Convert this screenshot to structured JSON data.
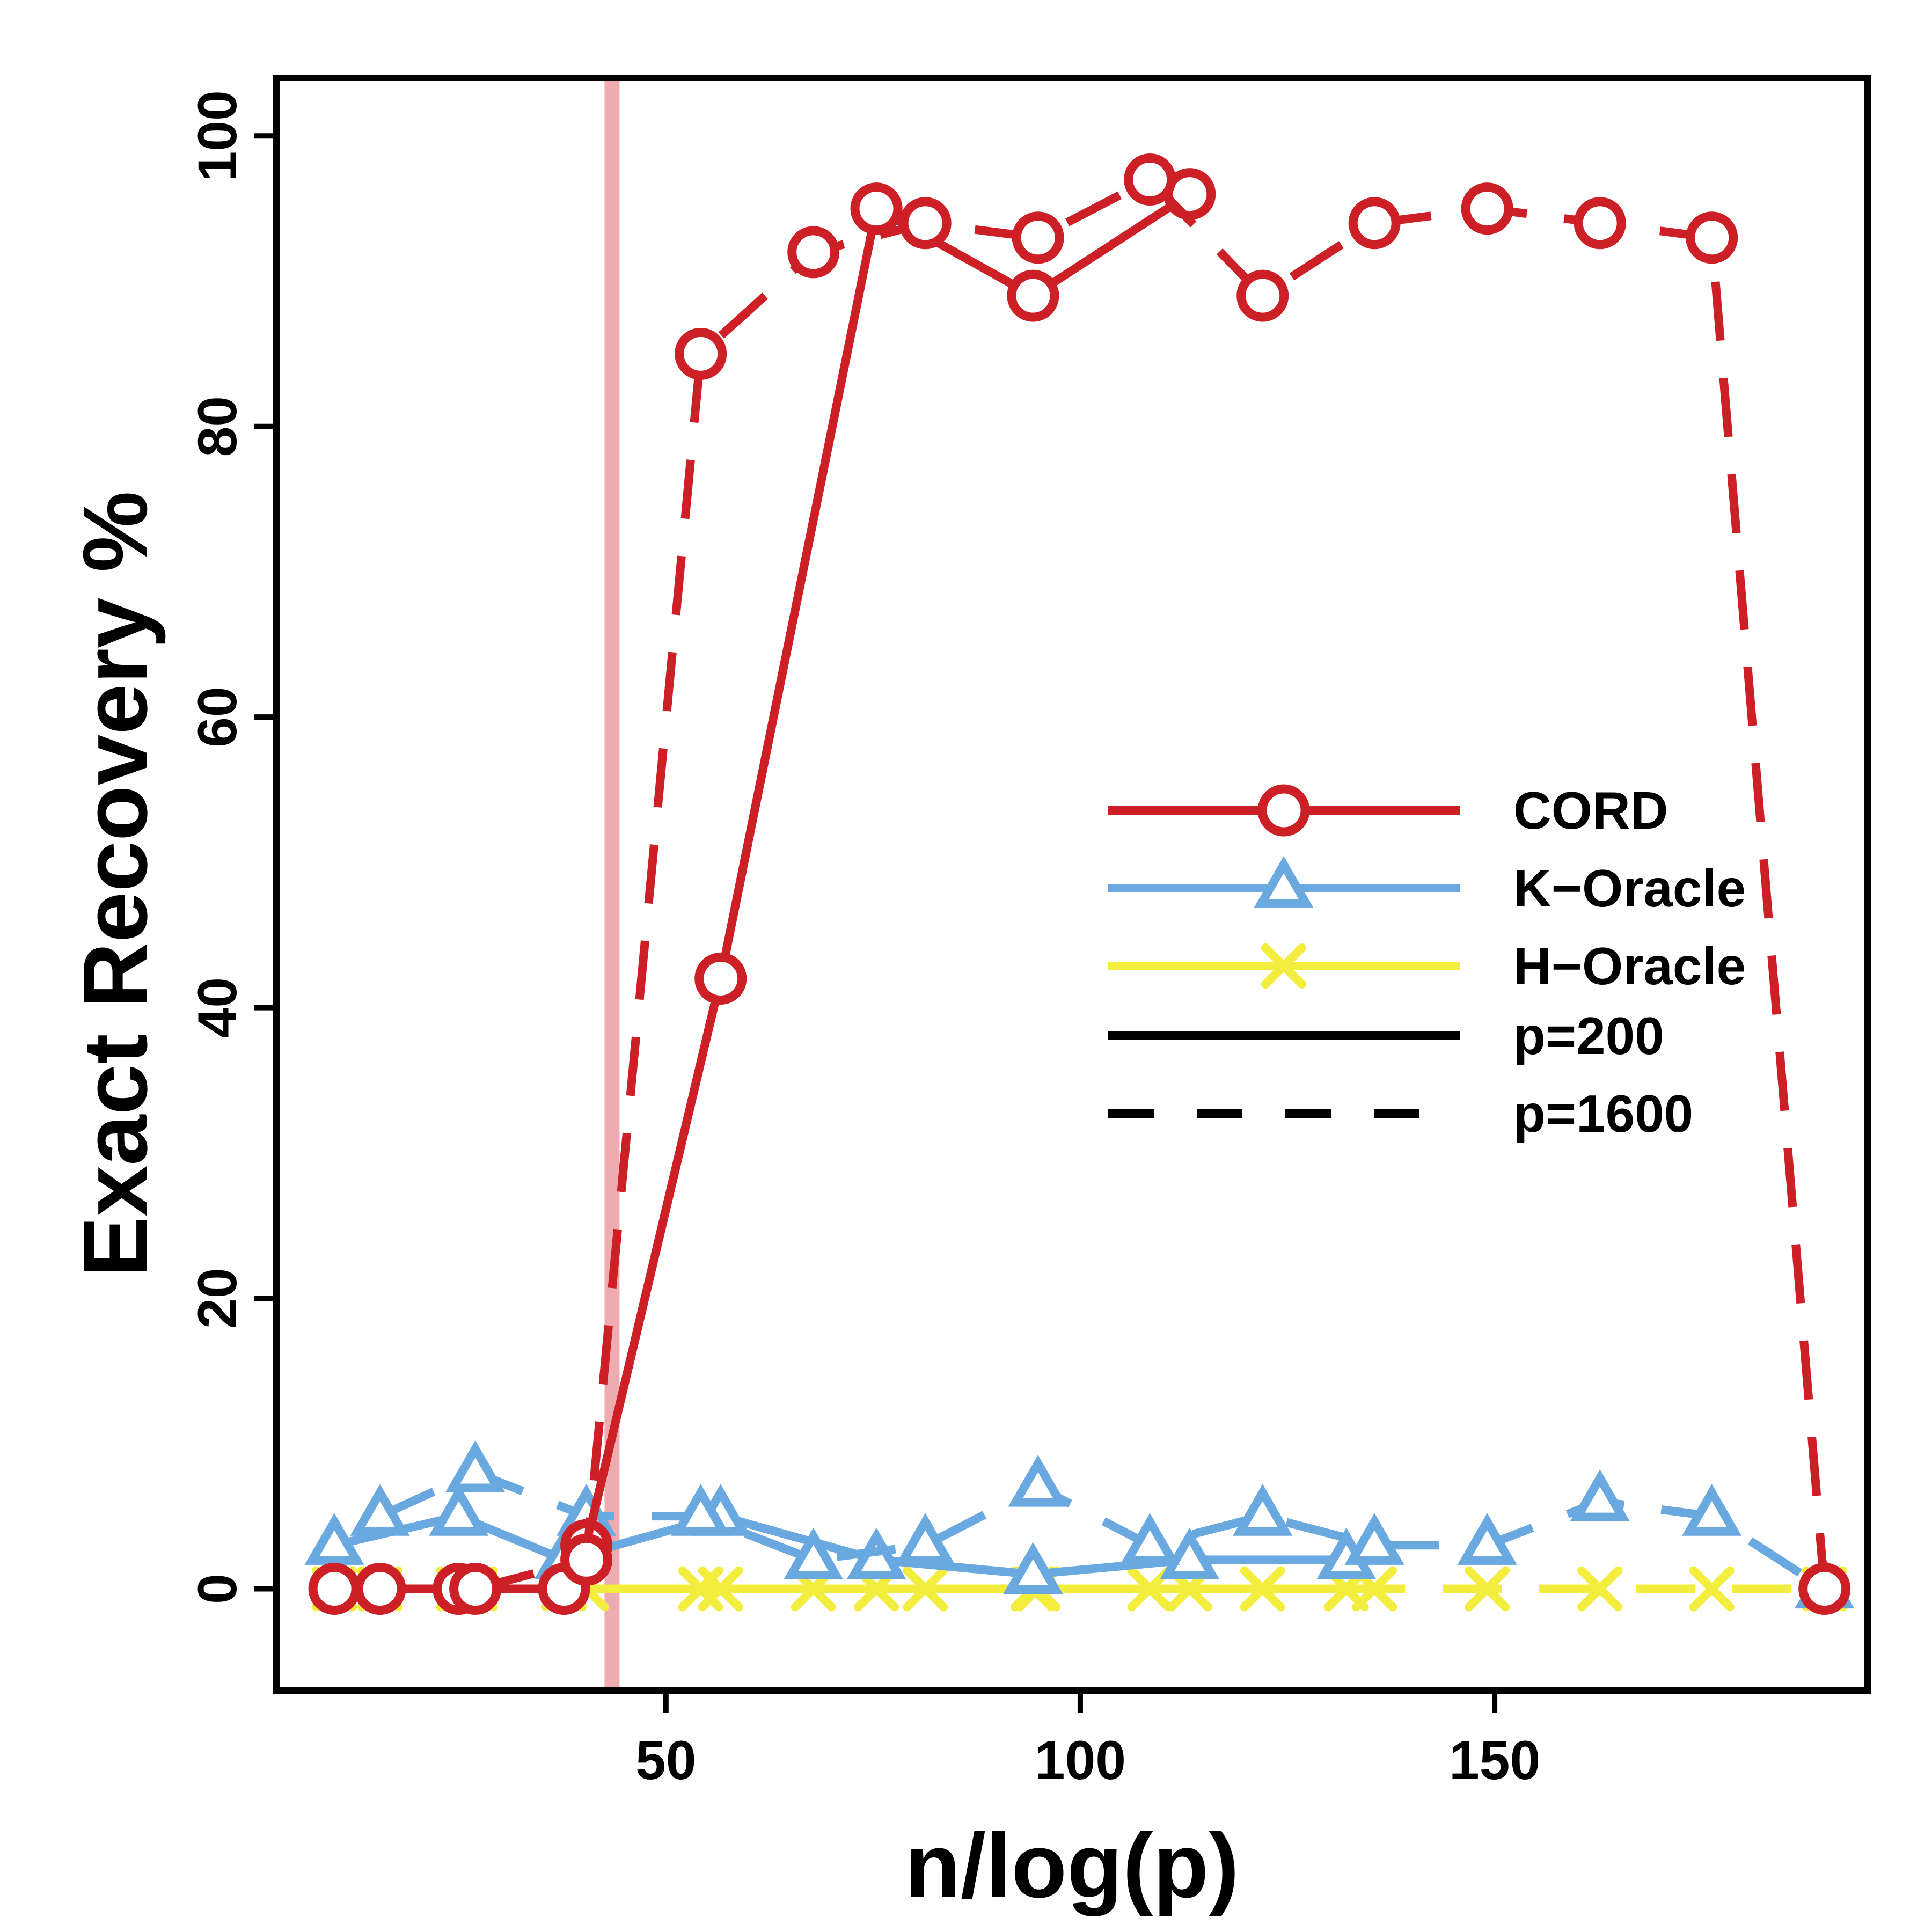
{
  "chart_data": {
    "type": "line",
    "xlabel": "n/log(p)",
    "ylabel": "Exact Recovery %",
    "xlim": [
      3,
      195
    ],
    "ylim": [
      -7,
      104
    ],
    "xticks": [
      50,
      100,
      150
    ],
    "yticks": [
      0,
      20,
      40,
      60,
      80,
      100
    ],
    "grid": false,
    "legend_position": "center-right",
    "threshold_line": {
      "x": 43.5,
      "color": "#e88a8f"
    },
    "colors": {
      "CORD": "#cc1f26",
      "K-Oracle": "#6aa9e0",
      "H-Oracle": "#f3ee3e"
    },
    "legend": [
      {
        "label": "CORD",
        "color": "#cc1f26",
        "marker": "circle",
        "dash": "solid"
      },
      {
        "label": "K−Oracle",
        "color": "#6aa9e0",
        "marker": "triangle",
        "dash": "solid"
      },
      {
        "label": "H−Oracle",
        "color": "#f3ee3e",
        "marker": "cross",
        "dash": "solid"
      },
      {
        "label": "p=200",
        "color": "#000000",
        "marker": "none",
        "dash": "solid"
      },
      {
        "label": "p=1600",
        "color": "#000000",
        "marker": "none",
        "dash": "dashed"
      }
    ],
    "series": [
      {
        "method": "CORD",
        "p": 200,
        "marker": "circle",
        "dash": "solid",
        "x": [
          10,
          25,
          37.7,
          40.4,
          56.6,
          75.4,
          94.3,
          113.2
        ],
        "y": [
          0,
          0,
          0,
          3,
          42,
          95,
          89,
          96
        ]
      },
      {
        "method": "CORD",
        "p": 1600,
        "marker": "circle",
        "dash": "dashed",
        "x": [
          15.5,
          27,
          40.4,
          54.2,
          67.8,
          81.3,
          94.9,
          108.4,
          122,
          135.5,
          149.1,
          162.7,
          176.2,
          189.8
        ],
        "y": [
          0,
          0,
          2,
          85,
          92,
          94,
          93,
          97,
          89,
          94,
          95,
          94,
          93,
          0
        ]
      },
      {
        "method": "K-Oracle",
        "p": 200,
        "marker": "triangle",
        "dash": "solid",
        "x": [
          10,
          25,
          37.7,
          56.6,
          75.4,
          94.3,
          113.2,
          132.1
        ],
        "y": [
          3,
          5,
          2,
          5,
          2,
          1,
          2,
          2
        ]
      },
      {
        "method": "K-Oracle",
        "p": 1600,
        "marker": "triangle",
        "dash": "dashed",
        "x": [
          15.5,
          27,
          40.4,
          54.2,
          67.8,
          81.3,
          94.9,
          108.4,
          122,
          135.5,
          149.1,
          162.7,
          176.2,
          189.8
        ],
        "y": [
          5,
          8,
          5,
          5,
          2,
          3,
          7,
          3,
          5,
          3,
          3,
          6,
          5,
          0
        ]
      },
      {
        "method": "H-Oracle",
        "p": 200,
        "marker": "cross",
        "dash": "solid",
        "x": [
          10,
          25,
          37.7,
          56.6,
          75.4,
          94.3,
          113.2,
          132.1
        ],
        "y": [
          0,
          0,
          0,
          0,
          0,
          0,
          0,
          0
        ]
      },
      {
        "method": "H-Oracle",
        "p": 1600,
        "marker": "cross",
        "dash": "dashed",
        "x": [
          15.5,
          27,
          40.4,
          54.2,
          67.8,
          81.3,
          94.9,
          108.4,
          122,
          135.5,
          149.1,
          162.7,
          176.2,
          189.8
        ],
        "y": [
          0,
          0,
          0,
          0,
          0,
          0,
          0,
          0,
          0,
          0,
          0,
          0,
          0,
          0
        ]
      }
    ]
  }
}
